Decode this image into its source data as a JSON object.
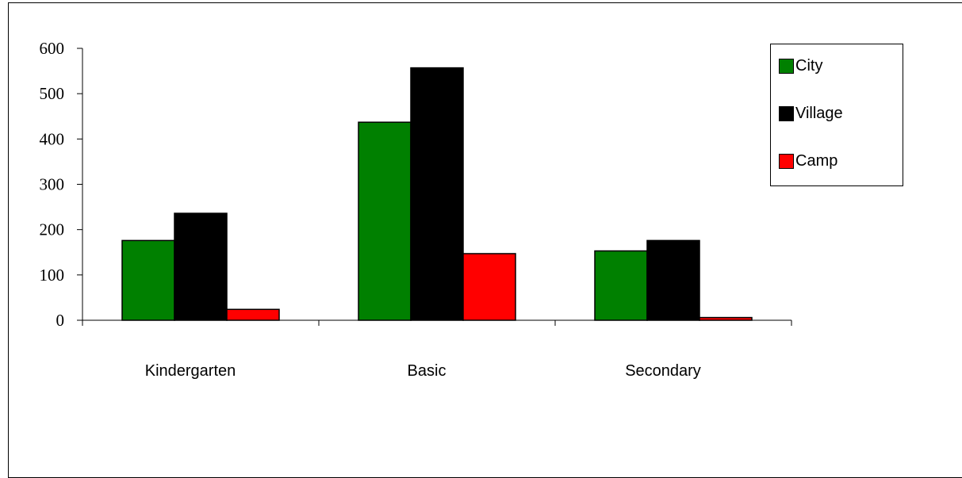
{
  "chart_data": {
    "type": "bar",
    "categories": [
      "Kindergarten",
      "Basic",
      "Secondary"
    ],
    "series": [
      {
        "name": "City",
        "color": "#008000",
        "values": [
          176,
          437,
          153
        ]
      },
      {
        "name": "Village",
        "color": "#000000",
        "values": [
          236,
          557,
          176
        ]
      },
      {
        "name": "Camp",
        "color": "#ff0000",
        "values": [
          24,
          147,
          6
        ]
      }
    ],
    "yticks": [
      "0",
      "100",
      "200",
      "300",
      "400",
      "500",
      "600"
    ],
    "ylim": [
      0,
      600
    ],
    "grid": false,
    "legend_position": "top-right"
  }
}
